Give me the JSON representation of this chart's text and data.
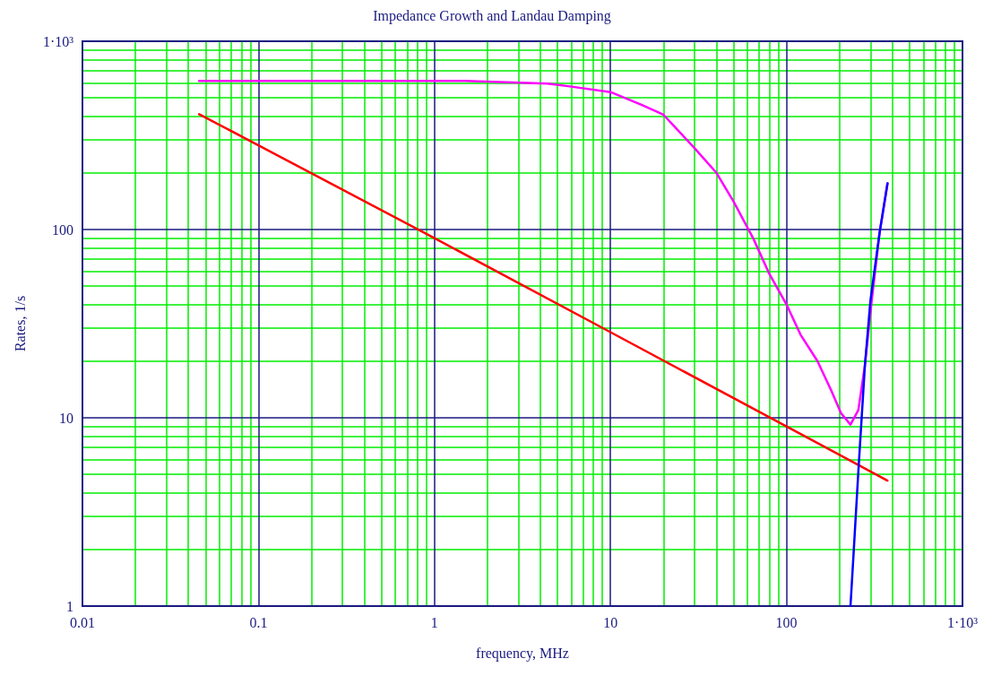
{
  "chart_data": {
    "type": "line",
    "title": "Impedance Growth and Landau Damping",
    "xlabel": "frequency, MHz",
    "ylabel": "Rates, 1/s",
    "log": "xy",
    "grid": true,
    "marker": "none",
    "line_style": "solid",
    "xlim": [
      0.01,
      1000
    ],
    "xticks": [
      0.01,
      {
        "value": 0.02,
        "label": null
      },
      {
        "value": 0.03,
        "label": null
      },
      {
        "value": 0.04,
        "label": null
      },
      {
        "value": 0.05,
        "label": null
      },
      {
        "value": 0.06,
        "label": null
      },
      {
        "value": 0.07,
        "label": null
      },
      {
        "value": 0.08,
        "label": null
      },
      {
        "value": 0.09,
        "label": null
      },
      0.1,
      {
        "value": 0.2,
        "label": null
      },
      {
        "value": 0.3,
        "label": null
      },
      {
        "value": 0.4,
        "label": null
      },
      {
        "value": 0.5,
        "label": null
      },
      {
        "value": 0.6,
        "label": null
      },
      {
        "value": 0.7,
        "label": null
      },
      {
        "value": 0.8,
        "label": null
      },
      {
        "value": 0.9,
        "label": null
      },
      1,
      {
        "value": 2,
        "label": null
      },
      {
        "value": 3,
        "label": null
      },
      {
        "value": 4,
        "label": null
      },
      {
        "value": 5,
        "label": null
      },
      {
        "value": 6,
        "label": null
      },
      {
        "value": 7,
        "label": null
      },
      {
        "value": 8,
        "label": null
      },
      {
        "value": 9,
        "label": null
      },
      10,
      {
        "value": 20,
        "label": null
      },
      {
        "value": 30,
        "label": null
      },
      {
        "value": 40,
        "label": null
      },
      {
        "value": 50,
        "label": null
      },
      {
        "value": 60,
        "label": null
      },
      {
        "value": 70,
        "label": null
      },
      {
        "value": 80,
        "label": null
      },
      {
        "value": 90,
        "label": null
      },
      100,
      {
        "value": 200,
        "label": null
      },
      {
        "value": 300,
        "label": null
      },
      {
        "value": 400,
        "label": null
      },
      {
        "value": 500,
        "label": null
      },
      {
        "value": 600,
        "label": null
      },
      {
        "value": 700,
        "label": null
      },
      {
        "value": 800,
        "label": null
      },
      {
        "value": 900,
        "label": null
      },
      {
        "value": 1000,
        "label": "1·10³"
      }
    ],
    "ylim": [
      1,
      1000
    ],
    "yticks": [
      1,
      {
        "value": 2,
        "label": null
      },
      {
        "value": 3,
        "label": null
      },
      {
        "value": 4,
        "label": null
      },
      {
        "value": 5,
        "label": null
      },
      {
        "value": 6,
        "label": null
      },
      {
        "value": 7,
        "label": null
      },
      {
        "value": 8,
        "label": null
      },
      {
        "value": 9,
        "label": null
      },
      10,
      {
        "value": 20,
        "label": null
      },
      {
        "value": 30,
        "label": null
      },
      {
        "value": 40,
        "label": null
      },
      {
        "value": 50,
        "label": null
      },
      {
        "value": 60,
        "label": null
      },
      {
        "value": 70,
        "label": null
      },
      {
        "value": 80,
        "label": null
      },
      {
        "value": 90,
        "label": null
      },
      100,
      {
        "value": 200,
        "label": null
      },
      {
        "value": 300,
        "label": null
      },
      {
        "value": 400,
        "label": null
      },
      {
        "value": 500,
        "label": null
      },
      {
        "value": 600,
        "label": null
      },
      {
        "value": 700,
        "label": null
      },
      {
        "value": 800,
        "label": null
      },
      {
        "value": 900,
        "label": null
      },
      {
        "value": 1000,
        "label": "1·10³"
      }
    ],
    "series": [
      {
        "color": "#ff00ff",
        "x": [
          0.046,
          1.5,
          4.4,
          6,
          10,
          15,
          20,
          30,
          40,
          50,
          65,
          80,
          100,
          120,
          150,
          180,
          204,
          231,
          256,
          279,
          305,
          338,
          375
        ],
        "values": [
          615,
          615,
          596,
          574,
          537,
          460,
          407,
          271,
          200,
          141,
          89,
          58,
          40,
          27.7,
          20,
          13.9,
          10.6,
          9.2,
          11,
          19,
          42,
          96,
          176
        ]
      },
      {
        "color": "#ff0000",
        "x": [
          0.046,
          0.1,
          1,
          10,
          100,
          375
        ],
        "values": [
          410,
          280,
          90,
          28.5,
          9,
          4.64
        ]
      },
      {
        "color": "#0000ff",
        "x": [
          231,
          240,
          257,
          279,
          300,
          338,
          375
        ],
        "values": [
          1,
          1.83,
          5.5,
          19,
          42,
          96,
          176
        ]
      }
    ]
  }
}
